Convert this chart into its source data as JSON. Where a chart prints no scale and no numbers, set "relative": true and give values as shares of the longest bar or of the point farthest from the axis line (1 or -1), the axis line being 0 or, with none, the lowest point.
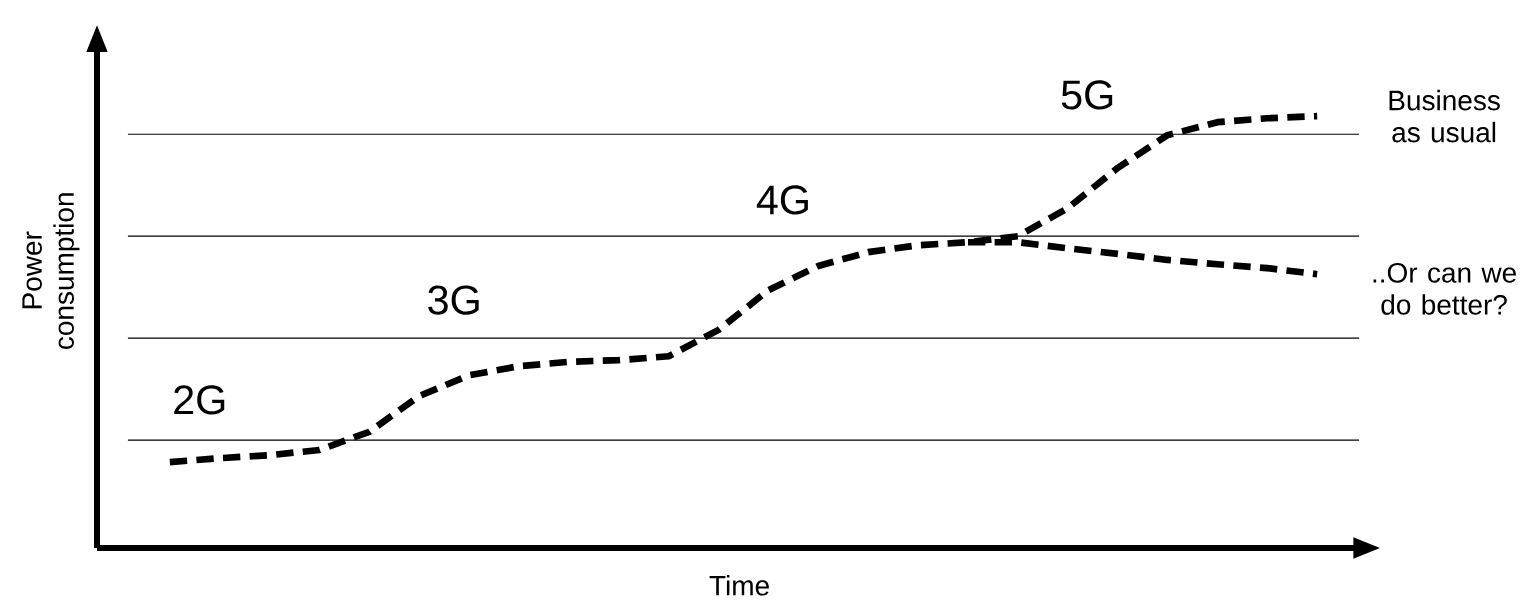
{
  "chart_data": {
    "type": "line",
    "relative": true,
    "xlabel": "Time",
    "ylabel": "Power consumption",
    "categories": [
      null,
      null,
      null,
      null,
      null,
      null,
      null,
      null,
      null,
      null,
      null,
      null,
      null,
      null,
      null,
      null,
      null,
      null,
      null,
      null,
      null,
      null,
      null,
      null
    ],
    "series": [
      {
        "name": "Business as usual",
        "color": "#000000",
        "values": [
          0.199,
          0.208,
          0.215,
          0.227,
          0.269,
          0.352,
          0.4,
          0.421,
          0.431,
          0.435,
          0.444,
          0.505,
          0.597,
          0.653,
          0.685,
          0.701,
          0.708,
          0.722,
          0.787,
          0.88,
          0.956,
          0.986,
          0.995,
          1.0
        ]
      },
      {
        "name": "..Or can we do better?",
        "color": "#000000",
        "values": [
          null,
          null,
          null,
          null,
          null,
          null,
          null,
          null,
          null,
          null,
          null,
          null,
          null,
          null,
          null,
          null,
          0.708,
          0.708,
          0.694,
          0.681,
          0.667,
          0.657,
          0.648,
          0.634
        ]
      }
    ],
    "line_style": "dashed",
    "marker": "none",
    "annotations": [
      "2G",
      "3G",
      "4G",
      "5G"
    ],
    "ref_lines": [
      {
        "axis": "y",
        "value": 0.958,
        "color": "#000000"
      },
      {
        "axis": "y",
        "value": 0.722,
        "color": "#000000"
      },
      {
        "axis": "y",
        "value": 0.486,
        "color": "#000000"
      },
      {
        "axis": "y",
        "value": 0.25,
        "color": "#000000"
      }
    ]
  }
}
